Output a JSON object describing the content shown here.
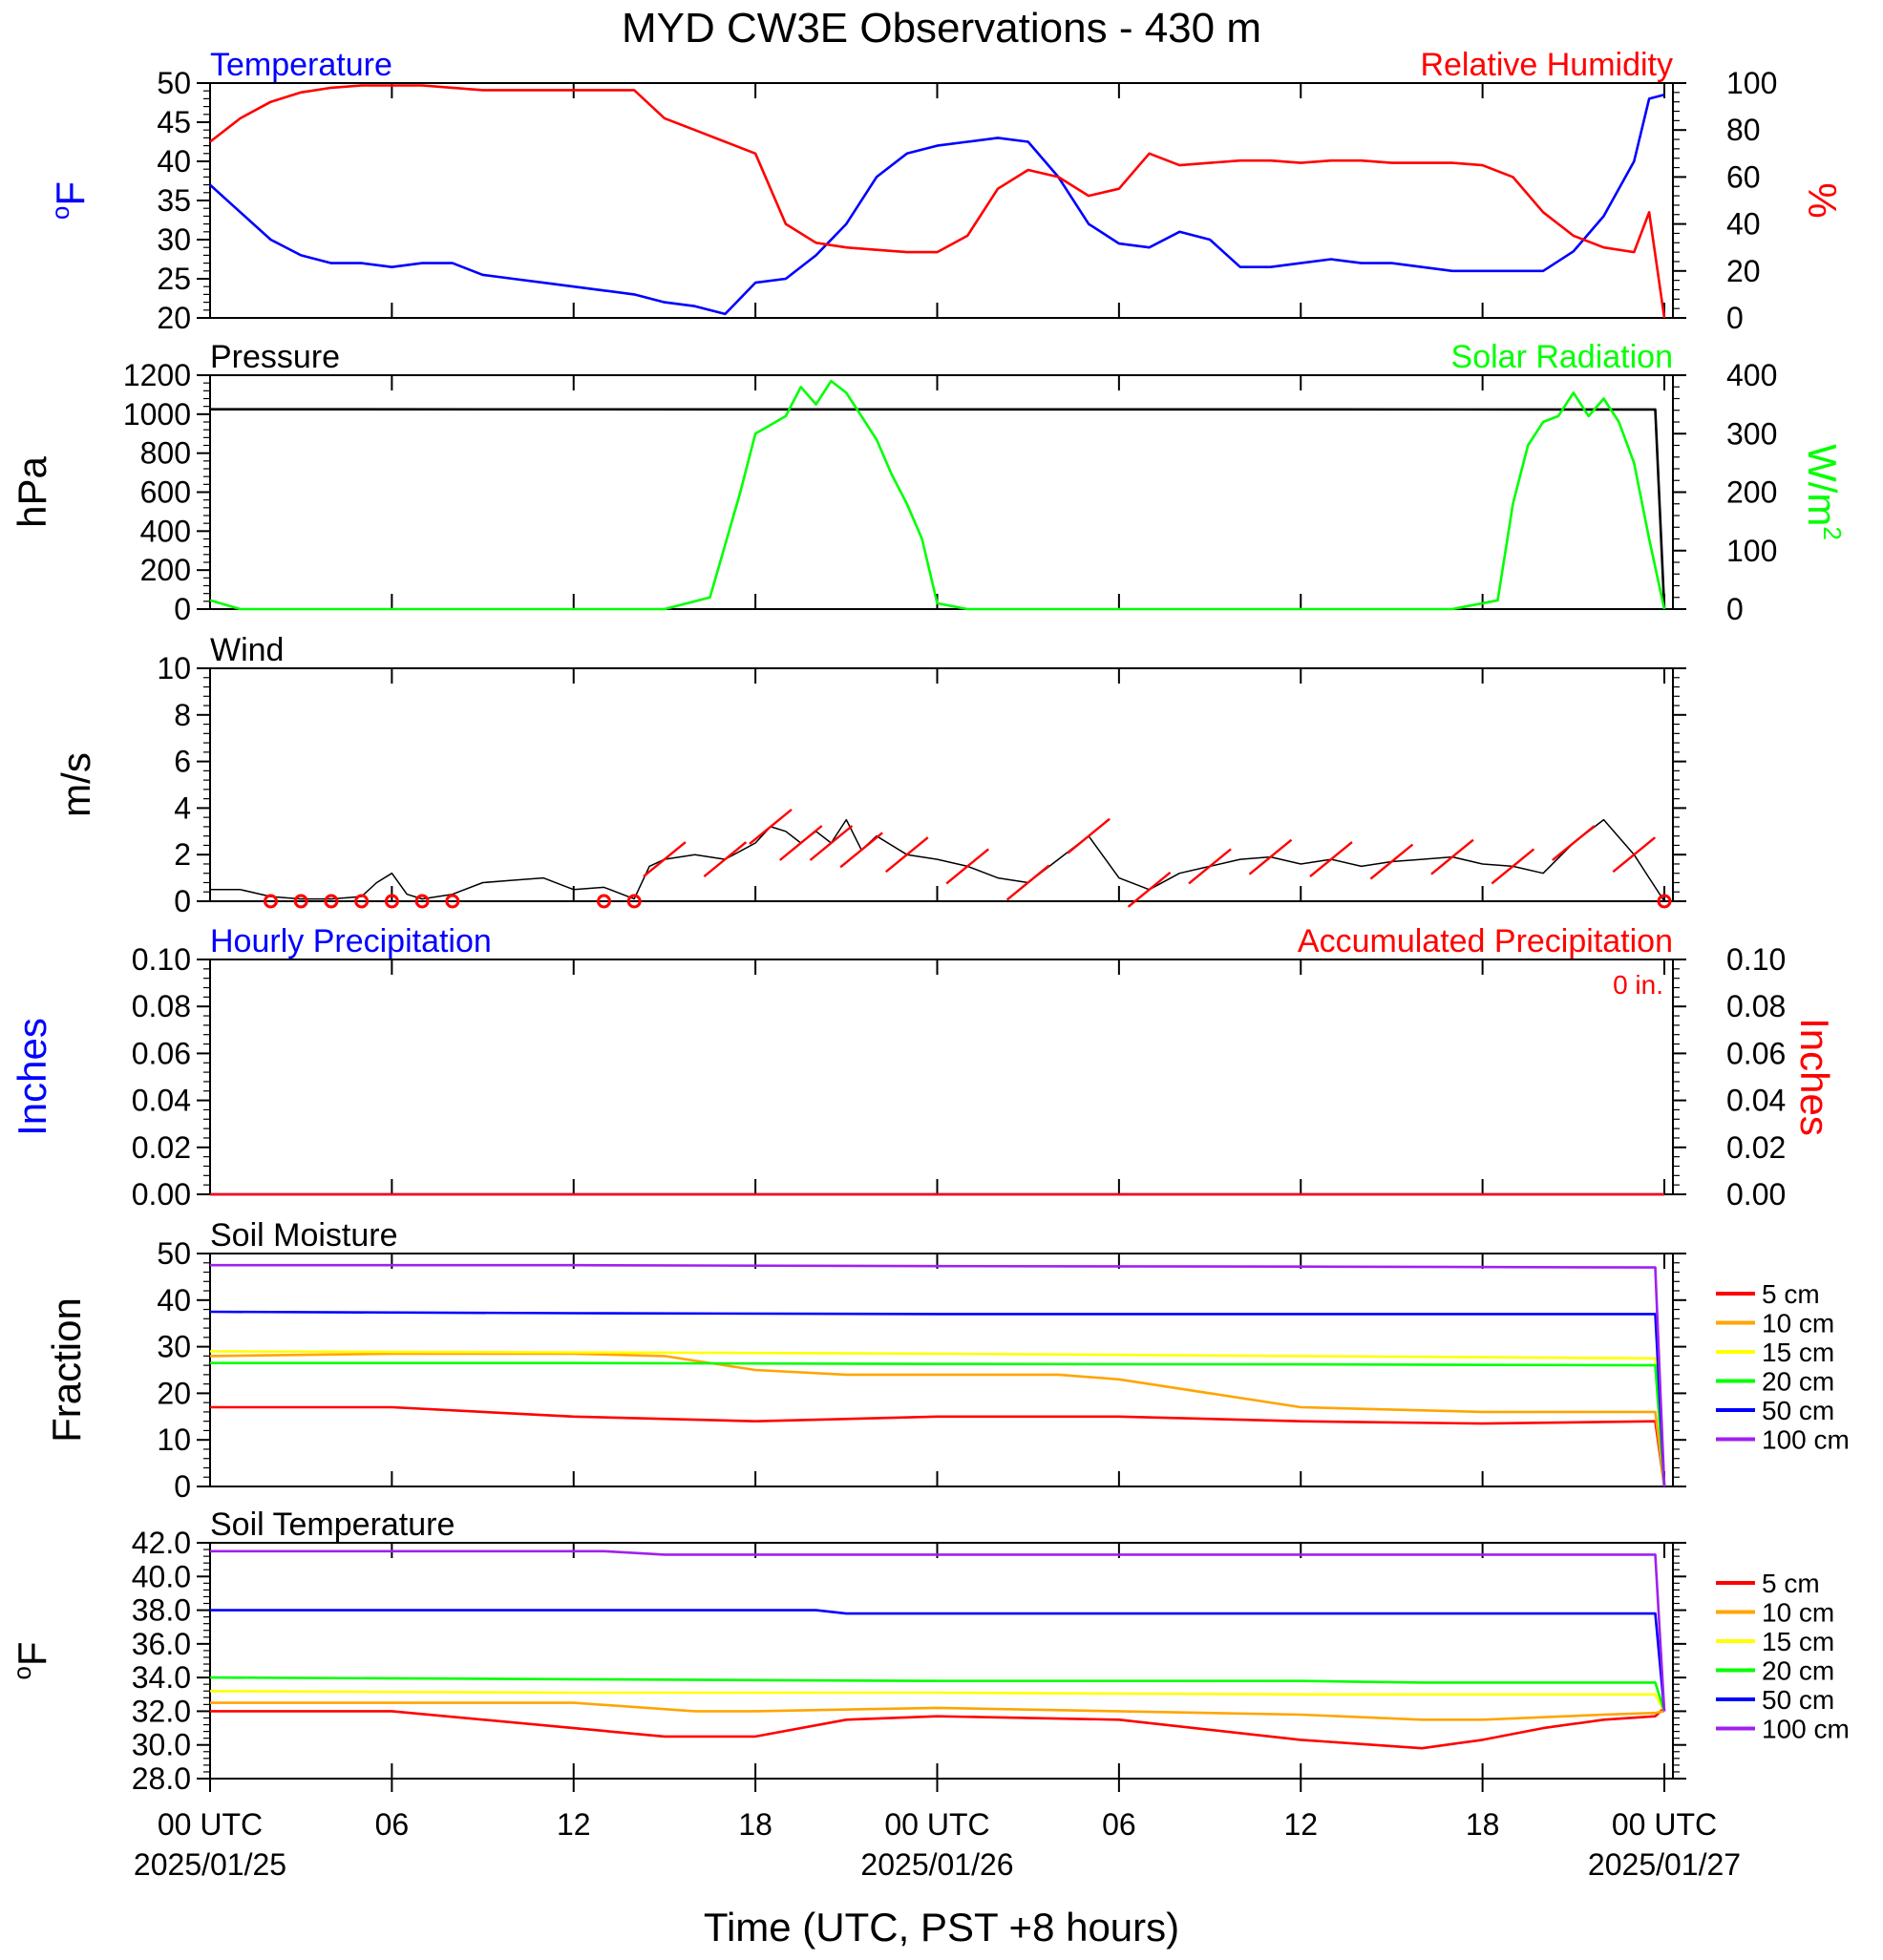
{
  "title": "MYD CW3E Observations - 430 m",
  "x_axis": {
    "label": "Time (UTC, PST +8 hours)",
    "ticks": [
      {
        "hour": 0,
        "label": "00 UTC",
        "date": "2025/01/25"
      },
      {
        "hour": 6,
        "label": "06",
        "date": ""
      },
      {
        "hour": 12,
        "label": "12",
        "date": ""
      },
      {
        "hour": 18,
        "label": "18",
        "date": ""
      },
      {
        "hour": 24,
        "label": "00 UTC",
        "date": "2025/01/26"
      },
      {
        "hour": 30,
        "label": "06",
        "date": ""
      },
      {
        "hour": 36,
        "label": "12",
        "date": ""
      },
      {
        "hour": 42,
        "label": "18",
        "date": ""
      },
      {
        "hour": 48,
        "label": "00 UTC",
        "date": "2025/01/27"
      }
    ]
  },
  "colors": {
    "temperature": "#0000ff",
    "humidity": "#ff0000",
    "pressure": "#000000",
    "solar": "#00ff00",
    "wind_speed": "#000000",
    "wind_barb": "#ff0000",
    "hourly_precip": "#0000ff",
    "accum_precip": "#ff0000",
    "d5": "#ff0000",
    "d10": "#ffa500",
    "d15": "#ffff00",
    "d20": "#00ff00",
    "d50": "#0000ff",
    "d100": "#a020f0"
  },
  "chart_data": [
    {
      "type": "line",
      "left_title": "Temperature",
      "right_title": "Relative Humidity",
      "ylabel": "°F",
      "y2label": "%",
      "ylim": [
        20,
        50
      ],
      "y2lim": [
        0,
        100
      ],
      "yticks": [
        "20",
        "25",
        "30",
        "35",
        "40",
        "45",
        "50"
      ],
      "y2ticks": [
        "0",
        "20",
        "40",
        "60",
        "80",
        "100"
      ],
      "series": [
        {
          "name": "Temperature",
          "axis": "left",
          "x": [
            0,
            1,
            2,
            3,
            4,
            5,
            6,
            7,
            8,
            9,
            10,
            11,
            12,
            13,
            14,
            15,
            16,
            17,
            18,
            19,
            20,
            21,
            22,
            23,
            24,
            25,
            26,
            27,
            28,
            29,
            30,
            31,
            32,
            33,
            34,
            35,
            36,
            37,
            38,
            39,
            40,
            41,
            42,
            43,
            44,
            45,
            46,
            47,
            47.5,
            48
          ],
          "y": [
            37,
            33.5,
            30,
            28,
            27,
            27,
            26.5,
            27,
            27,
            25.5,
            25,
            24.5,
            24,
            23.5,
            23,
            22,
            21.5,
            20.5,
            24.5,
            25,
            28,
            32,
            38,
            41,
            42,
            42.5,
            43,
            42.5,
            38,
            32,
            29.5,
            29,
            31,
            30,
            26.5,
            26.5,
            27,
            27.5,
            27,
            27,
            26.5,
            26,
            26,
            26,
            26,
            28.5,
            33,
            40,
            48,
            48.5
          ]
        },
        {
          "name": "Relative Humidity",
          "axis": "right",
          "x": [
            0,
            1,
            2,
            3,
            4,
            5,
            6,
            7,
            8,
            9,
            10,
            11,
            12,
            13,
            14,
            15,
            16,
            17,
            18,
            19,
            20,
            21,
            22,
            23,
            24,
            25,
            26,
            27,
            28,
            29,
            30,
            31,
            32,
            33,
            34,
            35,
            36,
            37,
            38,
            39,
            40,
            41,
            42,
            43,
            44,
            45,
            46,
            47,
            47.5,
            48
          ],
          "y": [
            75,
            85,
            92,
            96,
            98,
            99,
            99,
            99,
            98,
            97,
            97,
            97,
            97,
            97,
            97,
            85,
            80,
            75,
            70,
            40,
            32,
            30,
            29,
            28,
            28,
            35,
            55,
            63,
            60,
            52,
            55,
            70,
            65,
            66,
            67,
            67,
            66,
            67,
            67,
            66,
            66,
            66,
            65,
            60,
            45,
            35,
            30,
            28,
            45,
            0
          ]
        }
      ]
    },
    {
      "type": "line",
      "left_title": "Pressure",
      "right_title": "Solar Radiation",
      "ylabel": "hPa",
      "y2label": "W/m",
      "ylim": [
        0,
        1200
      ],
      "y2lim": [
        0,
        400
      ],
      "yticks": [
        "0",
        "200",
        "400",
        "600",
        "800",
        "1000",
        "1200"
      ],
      "y2ticks": [
        "0",
        "100",
        "200",
        "300",
        "400"
      ],
      "series": [
        {
          "name": "Pressure",
          "axis": "left",
          "x": [
            0,
            47.7,
            48
          ],
          "y": [
            1025,
            1024,
            0
          ]
        },
        {
          "name": "Solar Radiation",
          "axis": "right",
          "x": [
            0,
            1,
            15,
            16.5,
            17.5,
            18,
            19,
            19.5,
            20,
            20.5,
            21,
            21.5,
            22,
            22.5,
            23,
            23.5,
            24,
            25,
            26,
            41,
            42.5,
            43,
            43.5,
            44,
            44.5,
            45,
            45.5,
            46,
            46.5,
            47,
            47.5,
            48
          ],
          "y": [
            15,
            0,
            0,
            20,
            200,
            300,
            330,
            380,
            350,
            390,
            370,
            330,
            290,
            230,
            180,
            120,
            10,
            0,
            0,
            0,
            15,
            180,
            280,
            320,
            330,
            370,
            330,
            360,
            320,
            250,
            120,
            0
          ]
        }
      ]
    },
    {
      "type": "line",
      "left_title": "Wind",
      "ylabel": "m/s",
      "ylim": [
        0,
        10
      ],
      "yticks": [
        "0",
        "2",
        "4",
        "6",
        "8",
        "10"
      ],
      "series": [
        {
          "name": "Wind",
          "axis": "left",
          "x": [
            0,
            1,
            2,
            3,
            4,
            5,
            5.5,
            6,
            6.5,
            7,
            8,
            9,
            10,
            11,
            12,
            13,
            14,
            14.5,
            15,
            16,
            17,
            18,
            18.5,
            19,
            19.5,
            20,
            20.5,
            21,
            21.5,
            22,
            23,
            24,
            25,
            26,
            27,
            28,
            29,
            30,
            31,
            32,
            33,
            34,
            35,
            36,
            37,
            38,
            39,
            40,
            41,
            42,
            43,
            44,
            45,
            46,
            47,
            47.5,
            48
          ],
          "y": [
            0.5,
            0.5,
            0.2,
            0.1,
            0.1,
            0.2,
            0.8,
            1.2,
            0.3,
            0.1,
            0.3,
            0.8,
            0.9,
            1.0,
            0.5,
            0.6,
            0.1,
            1.5,
            1.8,
            2.0,
            1.8,
            2.5,
            3.2,
            3.0,
            2.5,
            3.0,
            2.5,
            3.5,
            2.2,
            2.8,
            2.0,
            1.8,
            1.5,
            1.0,
            0.8,
            1.8,
            2.8,
            1.0,
            0.5,
            1.2,
            1.5,
            1.8,
            1.9,
            1.6,
            1.8,
            1.5,
            1.7,
            1.8,
            1.9,
            1.6,
            1.5,
            1.2,
            2.5,
            3.5,
            2.0,
            1.0,
            0.0
          ]
        }
      ],
      "calm_markers": [
        2,
        3,
        4,
        5,
        6,
        7,
        8,
        13,
        14,
        48
      ]
    },
    {
      "type": "line",
      "left_title": "Hourly Precipitation",
      "right_title": "Accumulated Precipitation",
      "annotation": "0 in.",
      "ylabel": "Inches",
      "y2label": "Inches",
      "ylim": [
        0,
        0.1
      ],
      "y2lim": [
        0,
        0.1
      ],
      "yticks": [
        "0.00",
        "0.02",
        "0.04",
        "0.06",
        "0.08",
        "0.10"
      ],
      "y2ticks": [
        "0.00",
        "0.02",
        "0.04",
        "0.06",
        "0.08",
        "0.10"
      ],
      "series": [
        {
          "name": "Hourly Precipitation",
          "axis": "left",
          "x": [
            0,
            48
          ],
          "y": [
            0,
            0
          ]
        },
        {
          "name": "Accumulated Precipitation",
          "axis": "right",
          "x": [
            0,
            48
          ],
          "y": [
            0,
            0
          ]
        }
      ]
    },
    {
      "type": "line",
      "left_title": "Soil Moisture",
      "ylabel": "Fraction",
      "ylim": [
        0,
        50
      ],
      "yticks": [
        "0",
        "10",
        "20",
        "30",
        "40",
        "50"
      ],
      "legend": [
        "5 cm",
        "10 cm",
        "15 cm",
        "20 cm",
        "50 cm",
        "100 cm"
      ],
      "series": [
        {
          "name": "5 cm",
          "x": [
            0,
            6,
            12,
            18,
            24,
            30,
            36,
            42,
            47.7,
            48
          ],
          "y": [
            17,
            17,
            15,
            14,
            15,
            15,
            14,
            13.5,
            14,
            0
          ]
        },
        {
          "name": "10 cm",
          "x": [
            0,
            6,
            12,
            15,
            18,
            21,
            24,
            28,
            30,
            36,
            42,
            47.7,
            48
          ],
          "y": [
            28,
            28.5,
            28.5,
            28,
            25,
            24,
            24,
            24,
            23,
            17,
            16,
            16,
            0
          ]
        },
        {
          "name": "15 cm",
          "x": [
            0,
            12,
            24,
            36,
            47.7,
            48
          ],
          "y": [
            29,
            28.8,
            28.5,
            28,
            27.5,
            0
          ]
        },
        {
          "name": "20 cm",
          "x": [
            0,
            12,
            24,
            36,
            47.7,
            48
          ],
          "y": [
            26.5,
            26.5,
            26.3,
            26.2,
            26,
            0
          ]
        },
        {
          "name": "50 cm",
          "x": [
            0,
            12,
            24,
            36,
            47.7,
            48
          ],
          "y": [
            37.5,
            37.2,
            37,
            37,
            37,
            0
          ]
        },
        {
          "name": "100 cm",
          "x": [
            0,
            12,
            24,
            36,
            47.7,
            48
          ],
          "y": [
            47.5,
            47.5,
            47.3,
            47.2,
            47,
            0
          ]
        }
      ]
    },
    {
      "type": "line",
      "left_title": "Soil Temperature",
      "ylabel": "°F",
      "ylim": [
        28,
        42
      ],
      "yticks": [
        "28.0",
        "30.0",
        "32.0",
        "34.0",
        "36.0",
        "38.0",
        "40.0",
        "42.0"
      ],
      "legend": [
        "5 cm",
        "10 cm",
        "15 cm",
        "20 cm",
        "50 cm",
        "100 cm"
      ],
      "series": [
        {
          "name": "5 cm",
          "x": [
            0,
            6,
            12,
            15,
            18,
            21,
            24,
            30,
            36,
            40,
            42,
            44,
            46,
            47.7,
            48
          ],
          "y": [
            32,
            32,
            31,
            30.5,
            30.5,
            31.5,
            31.7,
            31.5,
            30.3,
            29.8,
            30.3,
            31,
            31.5,
            31.7,
            32.2
          ]
        },
        {
          "name": "10 cm",
          "x": [
            0,
            12,
            16,
            18,
            24,
            36,
            40,
            42,
            46,
            47.7,
            48
          ],
          "y": [
            32.5,
            32.5,
            32,
            32,
            32.2,
            31.8,
            31.5,
            31.5,
            31.8,
            31.9,
            32
          ]
        },
        {
          "name": "15 cm",
          "x": [
            0,
            12,
            24,
            36,
            47.7,
            48
          ],
          "y": [
            33.2,
            33.1,
            33.1,
            33,
            33,
            32
          ]
        },
        {
          "name": "20 cm",
          "x": [
            0,
            12,
            24,
            36,
            40,
            47.7,
            48
          ],
          "y": [
            34,
            33.9,
            33.8,
            33.8,
            33.7,
            33.7,
            32
          ]
        },
        {
          "name": "50 cm",
          "x": [
            0,
            20,
            21,
            36,
            47.7,
            48
          ],
          "y": [
            38,
            38,
            37.8,
            37.8,
            37.8,
            32
          ]
        },
        {
          "name": "100 cm",
          "x": [
            0,
            13,
            15,
            20,
            36,
            47.7,
            48
          ],
          "y": [
            41.5,
            41.5,
            41.3,
            41.3,
            41.3,
            41.3,
            32
          ]
        }
      ]
    }
  ]
}
